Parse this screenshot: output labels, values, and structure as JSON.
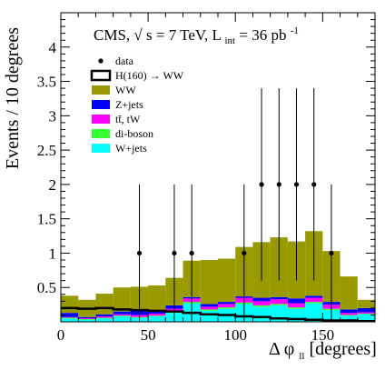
{
  "chart_data": {
    "type": "bar",
    "title": "",
    "header": {
      "prefix": "CMS,",
      "sqrt_sym": "√",
      "energy": "s = 7 TeV, L",
      "lumi_sub": "int",
      "lumi_value": " = 36 pb",
      "lumi_sup": "-1"
    },
    "xlabel": {
      "main": "Δ φ",
      "sub": "ll",
      "unit": " [degrees]"
    },
    "ylabel": "Events / 10 degrees",
    "xlim": [
      0,
      180
    ],
    "ylim": [
      0,
      4.5
    ],
    "x_ticks": [
      0,
      50,
      100,
      150
    ],
    "y_ticks": [
      0.5,
      1,
      1.5,
      2,
      2.5,
      3,
      3.5,
      4
    ],
    "bin_edges": [
      0,
      10,
      20,
      30,
      40,
      50,
      60,
      70,
      80,
      90,
      100,
      110,
      120,
      130,
      140,
      150,
      160,
      170,
      180
    ],
    "stack": [
      {
        "name": "W+jets",
        "color": "#00ffff",
        "values": [
          0.05,
          0.03,
          0.05,
          0.08,
          0.06,
          0.08,
          0.13,
          0.27,
          0.16,
          0.19,
          0.26,
          0.22,
          0.24,
          0.19,
          0.27,
          0.17,
          0.09,
          0.11
        ]
      },
      {
        "name": "di-boson",
        "color": "#33ff33",
        "values": [
          0.01,
          0.01,
          0.01,
          0.01,
          0.01,
          0.01,
          0.02,
          0.02,
          0.02,
          0.02,
          0.02,
          0.02,
          0.02,
          0.02,
          0.02,
          0.02,
          0.01,
          0.01
        ]
      },
      {
        "name": "tt̄, tW",
        "color": "#ff00ff",
        "values": [
          0.01,
          0.01,
          0.02,
          0.02,
          0.03,
          0.03,
          0.04,
          0.05,
          0.04,
          0.05,
          0.07,
          0.06,
          0.07,
          0.06,
          0.06,
          0.06,
          0.03,
          0.02
        ]
      },
      {
        "name": "Z+jets",
        "color": "#0000ff",
        "values": [
          0.06,
          0.02,
          0.03,
          0.04,
          0.06,
          0.03,
          0.05,
          0.02,
          0.04,
          0.03,
          0.02,
          0.05,
          0.03,
          0.07,
          0.03,
          0.04,
          0.05,
          0.06
        ]
      },
      {
        "name": "WW",
        "color": "#999900",
        "values": [
          0.25,
          0.25,
          0.3,
          0.35,
          0.35,
          0.38,
          0.4,
          0.53,
          0.64,
          0.63,
          0.72,
          0.81,
          0.87,
          0.83,
          0.94,
          0.74,
          0.48,
          0.12
        ]
      }
    ],
    "signal": {
      "name": "H(160) → WW",
      "color": "#000000",
      "values": [
        0.2,
        0.19,
        0.2,
        0.18,
        0.17,
        0.16,
        0.15,
        0.13,
        0.11,
        0.1,
        0.08,
        0.07,
        0.05,
        0.04,
        0.03,
        0.02,
        0.02,
        0.01
      ]
    },
    "data_points": {
      "name": "data",
      "x": [
        45,
        65,
        75,
        105,
        115,
        125,
        135,
        145,
        155
      ],
      "y": [
        1,
        1,
        1,
        1,
        2,
        2,
        2,
        2,
        1
      ],
      "err_high": [
        1,
        1,
        1,
        1,
        1.4,
        1.4,
        1.4,
        1.4,
        1
      ]
    },
    "legend_order": [
      "data",
      "H(160) → WW",
      "WW",
      "Z+jets",
      "tt̄, tW",
      "di-boson",
      "W+jets"
    ],
    "legend_placement": "top-left",
    "grid": false
  }
}
